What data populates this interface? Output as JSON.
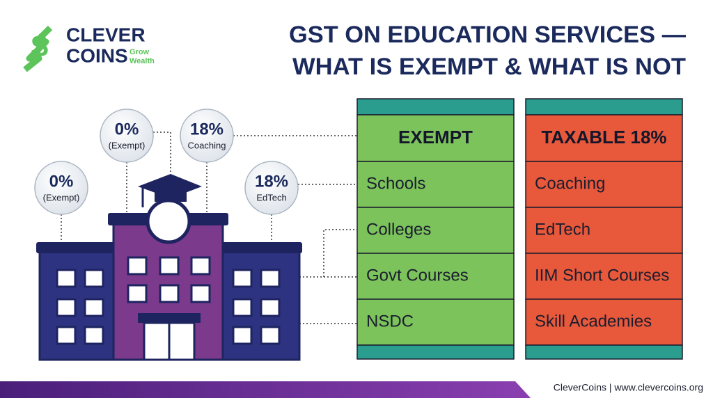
{
  "logo": {
    "name_line1": "CLEVER",
    "name_line2": "COINS",
    "tagline_line1": "Grow",
    "tagline_line2": "Wealth"
  },
  "title": {
    "line1": "GST ON EDUCATION SERVICES —",
    "line2": "WHAT IS EXEMPT & WHAT IS NOT"
  },
  "bubbles": [
    {
      "rate": "0%",
      "label": "(Exempt)"
    },
    {
      "rate": "0%",
      "label": "(Exempt)"
    },
    {
      "rate": "18%",
      "label": "Coaching"
    },
    {
      "rate": "18%",
      "label": "EdTech"
    }
  ],
  "columns": [
    {
      "header": "EXEMPT",
      "items": [
        "Schools",
        "Colleges",
        "Govt Courses",
        "NSDC"
      ]
    },
    {
      "header": "TAXABLE 18%",
      "items": [
        "Coaching",
        "EdTech",
        "IIM Short Courses",
        "Skill Academies"
      ]
    }
  ],
  "footer": "CleverCoins | www.clevercoins.org"
}
